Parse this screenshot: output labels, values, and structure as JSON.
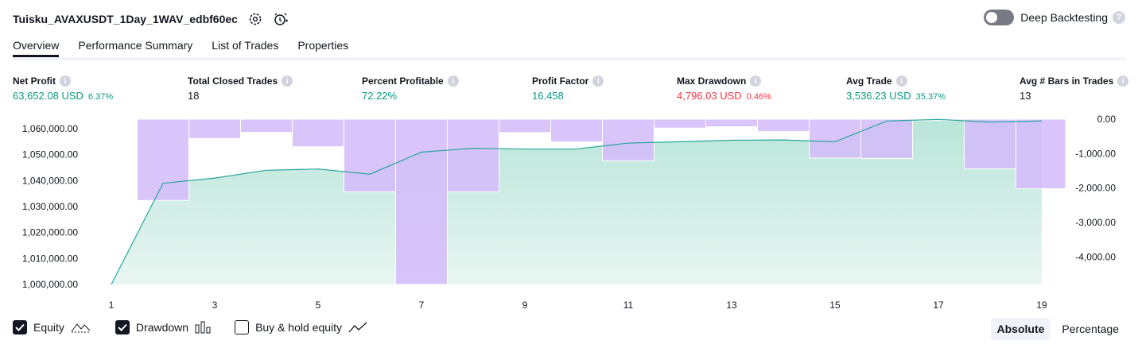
{
  "header": {
    "title": "Tuisku_AVAXUSDT_1Day_1WAV_edbf60ec",
    "settings_icon": "gear-icon",
    "alert_icon": "add-alert-clock-icon"
  },
  "deep_backtesting": {
    "label": "Deep Backtesting",
    "enabled": false,
    "help": "?"
  },
  "tabs": [
    {
      "label": "Overview",
      "active": true
    },
    {
      "label": "Performance Summary",
      "active": false
    },
    {
      "label": "List of Trades",
      "active": false
    },
    {
      "label": "Properties",
      "active": false
    }
  ],
  "stats": [
    {
      "label": "Net Profit",
      "value": "63,652.08 USD",
      "pct": "6.37%",
      "color": "#089981"
    },
    {
      "label": "Total Closed Trades",
      "value": "18",
      "pct": "",
      "color": "#131722"
    },
    {
      "label": "Percent Profitable",
      "value": "72.22%",
      "pct": "",
      "color": "#089981"
    },
    {
      "label": "Profit Factor",
      "value": "16.458",
      "pct": "",
      "color": "#089981"
    },
    {
      "label": "Max Drawdown",
      "value": "4,796.03 USD",
      "pct": "0.46%",
      "color": "#f23645"
    },
    {
      "label": "Avg Trade",
      "value": "3,536.23 USD",
      "pct": "35.37%",
      "color": "#089981"
    },
    {
      "label": "Avg # Bars in Trades",
      "value": "13",
      "pct": "",
      "color": "#131722"
    }
  ],
  "chart_data": {
    "type": "line",
    "x": [
      1,
      2,
      3,
      4,
      5,
      6,
      7,
      8,
      9,
      10,
      11,
      12,
      13,
      14,
      15,
      16,
      17,
      18,
      19
    ],
    "x_tick_labels": [
      "1",
      "3",
      "5",
      "7",
      "9",
      "11",
      "13",
      "15",
      "17",
      "19"
    ],
    "series": [
      {
        "axis": "left",
        "kind": "area-line",
        "color": "#26a69a",
        "values": [
          1000000,
          1039000,
          1041000,
          1044000,
          1044500,
          1042500,
          1051000,
          1052500,
          1052200,
          1052200,
          1054500,
          1055000,
          1055600,
          1055700,
          1055000,
          1063000,
          1063600,
          1062600,
          1063000
        ]
      },
      {
        "axis": "right",
        "kind": "bar",
        "color": "#d4bbfa",
        "values": [
          -20,
          -2360,
          -560,
          -380,
          -800,
          -2110,
          -4800,
          -2110,
          -390,
          -660,
          -1210,
          -260,
          -220,
          -360,
          -1130,
          -1140,
          -40,
          -1440,
          -2020
        ]
      }
    ],
    "left_ticks": [
      "1,060,000.00",
      "1,050,000.00",
      "1,040,000.00",
      "1,030,000.00",
      "1,020,000.00",
      "1,010,000.00",
      "1,000,000.00"
    ],
    "right_ticks": [
      "0.00",
      "-1,000.00",
      "-2,000.00",
      "-3,000.00",
      "-4,000.00"
    ],
    "ylim_left": [
      1000000,
      1063700
    ],
    "ylim_right": [
      -4800,
      0
    ]
  },
  "legend": [
    {
      "label": "Equity",
      "checked": true,
      "icon": "equity-line-icon"
    },
    {
      "label": "Drawdown",
      "checked": true,
      "icon": "drawdown-bars-icon"
    },
    {
      "label": "Buy & hold equity",
      "checked": false,
      "icon": "buy-hold-line-icon"
    }
  ],
  "mode": {
    "absolute": "Absolute",
    "percentage": "Percentage",
    "active": "absolute"
  }
}
